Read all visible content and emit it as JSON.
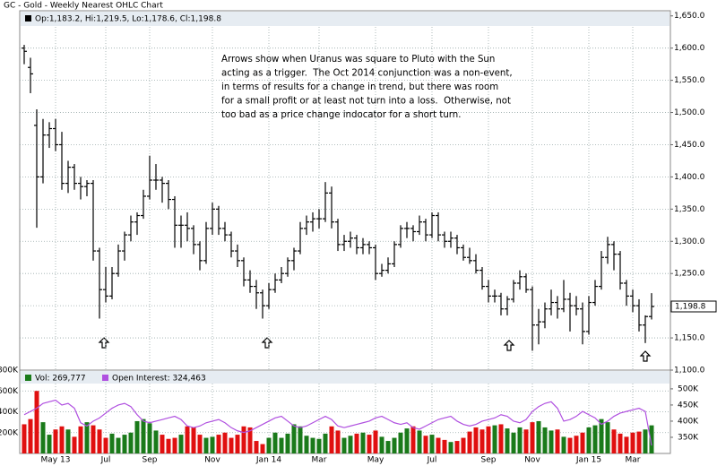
{
  "chart_data": [
    {
      "type": "ohlc",
      "title": "GC - Gold - Weekly Nearest OHLC Chart",
      "legend_text": "Op:1,183.2, Hi:1,219.5, Lo:1,178.6, Cl:1,198.8",
      "annotation": [
        "Arrows show when Uranus was square to Pluto with the Sun",
        "acting as a trigger.  The Oct 2014 conjunction was a non-event,",
        "in terms of results for a change in trend, but there was room",
        "for a small profit or at least not turn into a loss.  Otherwise, not",
        "too bad as a price change indocator for a short turn."
      ],
      "last_price": {
        "value": 1198.8,
        "label": "1,198.8"
      },
      "color": "#000000",
      "ylim": [
        1100,
        1658
      ],
      "yticks": [
        {
          "value": 1100,
          "label": "1,100.0"
        },
        {
          "value": 1150,
          "label": "1,150.0"
        },
        {
          "value": 1200,
          "label": "1,200.0"
        },
        {
          "value": 1250,
          "label": "1,250.0"
        },
        {
          "value": 1300,
          "label": "1,300.0"
        },
        {
          "value": 1350,
          "label": "1,350.0"
        },
        {
          "value": 1400,
          "label": "1,400.0"
        },
        {
          "value": 1450,
          "label": "1,450.0"
        },
        {
          "value": 1500,
          "label": "1,500.0"
        },
        {
          "value": 1550,
          "label": "1,550.0"
        },
        {
          "value": 1600,
          "label": "1,600.0"
        },
        {
          "value": 1650,
          "label": "1,650.0"
        }
      ],
      "grid": true,
      "ohlc": [
        [
          1600,
          1605,
          1575,
          1595
        ],
        [
          1570,
          1585,
          1530,
          1560
        ],
        [
          1480,
          1505,
          1321,
          1400
        ],
        [
          1400,
          1490,
          1390,
          1465
        ],
        [
          1465,
          1485,
          1445,
          1475
        ],
        [
          1475,
          1490,
          1440,
          1450
        ],
        [
          1450,
          1470,
          1380,
          1390
        ],
        [
          1390,
          1425,
          1375,
          1415
        ],
        [
          1415,
          1420,
          1380,
          1390
        ],
        [
          1390,
          1400,
          1365,
          1385
        ],
        [
          1385,
          1395,
          1370,
          1390
        ],
        [
          1390,
          1395,
          1270,
          1285
        ],
        [
          1285,
          1290,
          1180,
          1225
        ],
        [
          1225,
          1260,
          1205,
          1215
        ],
        [
          1215,
          1260,
          1210,
          1250
        ],
        [
          1250,
          1295,
          1245,
          1285
        ],
        [
          1285,
          1315,
          1270,
          1310
        ],
        [
          1310,
          1340,
          1300,
          1330
        ],
        [
          1330,
          1345,
          1310,
          1340
        ],
        [
          1340,
          1380,
          1335,
          1370
        ],
        [
          1370,
          1433,
          1365,
          1395
        ],
        [
          1395,
          1420,
          1380,
          1395
        ],
        [
          1395,
          1400,
          1360,
          1390
        ],
        [
          1390,
          1395,
          1350,
          1365
        ],
        [
          1365,
          1370,
          1290,
          1325
        ],
        [
          1325,
          1340,
          1290,
          1325
        ],
        [
          1325,
          1345,
          1300,
          1320
        ],
        [
          1320,
          1325,
          1280,
          1295
        ],
        [
          1295,
          1300,
          1255,
          1270
        ],
        [
          1270,
          1330,
          1265,
          1320
        ],
        [
          1320,
          1360,
          1310,
          1350
        ],
        [
          1350,
          1355,
          1310,
          1320
        ],
        [
          1320,
          1330,
          1300,
          1310
        ],
        [
          1310,
          1315,
          1275,
          1285
        ],
        [
          1285,
          1295,
          1260,
          1270
        ],
        [
          1270,
          1275,
          1230,
          1240
        ],
        [
          1240,
          1255,
          1220,
          1230
        ],
        [
          1230,
          1240,
          1195,
          1220
        ],
        [
          1220,
          1225,
          1180,
          1200
        ],
        [
          1200,
          1235,
          1195,
          1225
        ],
        [
          1225,
          1250,
          1220,
          1240
        ],
        [
          1240,
          1260,
          1235,
          1250
        ],
        [
          1250,
          1275,
          1245,
          1270
        ],
        [
          1270,
          1290,
          1255,
          1285
        ],
        [
          1285,
          1330,
          1280,
          1320
        ],
        [
          1320,
          1340,
          1310,
          1330
        ],
        [
          1330,
          1345,
          1315,
          1335
        ],
        [
          1335,
          1350,
          1320,
          1335
        ],
        [
          1335,
          1392,
          1330,
          1375
        ],
        [
          1375,
          1385,
          1320,
          1330
        ],
        [
          1330,
          1335,
          1285,
          1295
        ],
        [
          1295,
          1310,
          1285,
          1300
        ],
        [
          1300,
          1315,
          1290,
          1305
        ],
        [
          1305,
          1310,
          1280,
          1290
        ],
        [
          1290,
          1305,
          1280,
          1295
        ],
        [
          1295,
          1300,
          1280,
          1290
        ],
        [
          1290,
          1295,
          1240,
          1250
        ],
        [
          1250,
          1265,
          1245,
          1255
        ],
        [
          1255,
          1275,
          1250,
          1265
        ],
        [
          1265,
          1300,
          1260,
          1295
        ],
        [
          1295,
          1325,
          1290,
          1320
        ],
        [
          1320,
          1330,
          1305,
          1320
        ],
        [
          1320,
          1325,
          1300,
          1315
        ],
        [
          1315,
          1340,
          1310,
          1330
        ],
        [
          1330,
          1335,
          1300,
          1310
        ],
        [
          1310,
          1345,
          1305,
          1340
        ],
        [
          1340,
          1345,
          1300,
          1310
        ],
        [
          1310,
          1315,
          1290,
          1300
        ],
        [
          1300,
          1315,
          1290,
          1305
        ],
        [
          1305,
          1310,
          1280,
          1290
        ],
        [
          1290,
          1295,
          1270,
          1275
        ],
        [
          1275,
          1290,
          1265,
          1270
        ],
        [
          1270,
          1280,
          1250,
          1255
        ],
        [
          1255,
          1260,
          1225,
          1230
        ],
        [
          1230,
          1240,
          1205,
          1215
        ],
        [
          1215,
          1225,
          1205,
          1215
        ],
        [
          1215,
          1220,
          1185,
          1195
        ],
        [
          1195,
          1215,
          1185,
          1210
        ],
        [
          1210,
          1240,
          1205,
          1235
        ],
        [
          1235,
          1255,
          1225,
          1245
        ],
        [
          1245,
          1250,
          1220,
          1225
        ],
        [
          1225,
          1230,
          1130,
          1170
        ],
        [
          1170,
          1195,
          1140,
          1175
        ],
        [
          1175,
          1205,
          1165,
          1195
        ],
        [
          1195,
          1225,
          1185,
          1205
        ],
        [
          1205,
          1215,
          1180,
          1195
        ],
        [
          1195,
          1240,
          1190,
          1210
        ],
        [
          1210,
          1220,
          1160,
          1200
        ],
        [
          1200,
          1215,
          1185,
          1195
        ],
        [
          1195,
          1205,
          1140,
          1160
        ],
        [
          1160,
          1215,
          1155,
          1205
        ],
        [
          1205,
          1240,
          1200,
          1230
        ],
        [
          1230,
          1285,
          1225,
          1275
        ],
        [
          1275,
          1307,
          1265,
          1295
        ],
        [
          1295,
          1300,
          1255,
          1280
        ],
        [
          1280,
          1285,
          1225,
          1235
        ],
        [
          1235,
          1240,
          1200,
          1215
        ],
        [
          1215,
          1225,
          1190,
          1200
        ],
        [
          1200,
          1210,
          1160,
          1170
        ],
        [
          1170,
          1185,
          1142,
          1183.2
        ],
        [
          1183.2,
          1219.5,
          1178.6,
          1198.8
        ]
      ]
    },
    {
      "type": "bar",
      "categories": [
        null,
        null,
        null,
        null,
        null,
        "May 13",
        null,
        null,
        null,
        null,
        null,
        null,
        null,
        "Jul",
        null,
        null,
        null,
        null,
        null,
        null,
        "Sep",
        null,
        null,
        null,
        null,
        null,
        null,
        null,
        null,
        null,
        "Nov",
        null,
        null,
        null,
        null,
        null,
        null,
        null,
        null,
        "Jan 14",
        null,
        null,
        null,
        null,
        null,
        null,
        null,
        "Mar",
        null,
        null,
        null,
        null,
        null,
        null,
        null,
        null,
        "May",
        null,
        null,
        null,
        null,
        null,
        null,
        null,
        null,
        "Jul",
        null,
        null,
        null,
        null,
        null,
        null,
        null,
        null,
        "Sep",
        null,
        null,
        null,
        null,
        null,
        null,
        "Nov",
        null,
        null,
        null,
        null,
        null,
        null,
        null,
        null,
        "Jan 15",
        null,
        null,
        null,
        null,
        null,
        null,
        "Mar",
        null,
        null,
        null
      ],
      "ylim": [
        0,
        800000
      ],
      "yticks": [
        {
          "value": 200000,
          "label": "200K"
        },
        {
          "value": 400000,
          "label": "400K"
        },
        {
          "value": 600000,
          "label": "600K"
        },
        {
          "value": 800000,
          "label": "800K"
        }
      ],
      "y2lim": [
        300000,
        558000
      ],
      "y2ticks": [
        {
          "value": 350000,
          "label": "350K"
        },
        {
          "value": 400000,
          "label": "400K"
        },
        {
          "value": 450000,
          "label": "450K"
        },
        {
          "value": 500000,
          "label": "500K"
        }
      ],
      "grid": true,
      "series": [
        {
          "name": "Vol: 269,777",
          "color": "#1a7a1a",
          "up_color": "#1a7a1a",
          "down_color": "#e01010",
          "values": [
            280000,
            330000,
            600000,
            300000,
            180000,
            230000,
            260000,
            230000,
            160000,
            260000,
            300000,
            270000,
            230000,
            150000,
            190000,
            150000,
            180000,
            200000,
            310000,
            330000,
            290000,
            220000,
            180000,
            140000,
            150000,
            180000,
            260000,
            250000,
            180000,
            150000,
            160000,
            180000,
            200000,
            150000,
            180000,
            260000,
            250000,
            120000,
            90000,
            150000,
            200000,
            150000,
            190000,
            280000,
            260000,
            170000,
            150000,
            140000,
            190000,
            260000,
            220000,
            150000,
            170000,
            190000,
            200000,
            180000,
            220000,
            160000,
            120000,
            150000,
            200000,
            240000,
            260000,
            220000,
            170000,
            180000,
            150000,
            130000,
            110000,
            120000,
            150000,
            210000,
            250000,
            230000,
            260000,
            270000,
            280000,
            240000,
            200000,
            250000,
            230000,
            300000,
            310000,
            250000,
            220000,
            230000,
            160000,
            150000,
            170000,
            200000,
            250000,
            270000,
            330000,
            300000,
            230000,
            190000,
            160000,
            200000,
            210000,
            230000,
            269777
          ]
        },
        {
          "name": "Open Interest: 324,463",
          "color": "#b050e0",
          "axis": "y2",
          "values": [
            420000,
            430000,
            440000,
            455000,
            460000,
            465000,
            450000,
            455000,
            440000,
            395000,
            385000,
            400000,
            410000,
            425000,
            440000,
            450000,
            455000,
            445000,
            420000,
            400000,
            395000,
            400000,
            405000,
            410000,
            415000,
            405000,
            385000,
            380000,
            385000,
            395000,
            400000,
            405000,
            395000,
            380000,
            370000,
            365000,
            370000,
            380000,
            390000,
            400000,
            410000,
            415000,
            400000,
            385000,
            380000,
            385000,
            395000,
            405000,
            415000,
            405000,
            385000,
            380000,
            385000,
            390000,
            395000,
            400000,
            410000,
            415000,
            405000,
            395000,
            390000,
            395000,
            380000,
            375000,
            385000,
            395000,
            405000,
            410000,
            415000,
            400000,
            390000,
            385000,
            390000,
            400000,
            405000,
            410000,
            420000,
            415000,
            400000,
            395000,
            405000,
            430000,
            445000,
            455000,
            460000,
            440000,
            400000,
            405000,
            415000,
            430000,
            420000,
            410000,
            390000,
            400000,
            415000,
            425000,
            430000,
            435000,
            440000,
            430000,
            324463
          ]
        }
      ]
    }
  ]
}
